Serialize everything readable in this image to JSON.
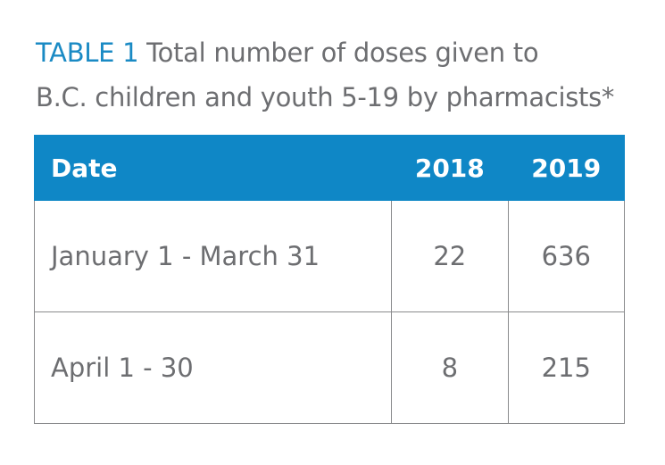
{
  "caption": {
    "label": "TABLE 1",
    "title_line1": " Total number of doses given to",
    "title_line2": "B.C. children and youth 5-19 by pharmacists*"
  },
  "colors": {
    "accent": "#0f87c6",
    "label": "#1a8ac4",
    "text": "#6d6e71",
    "border": "#8a8b8d"
  },
  "chart_data": {
    "type": "table",
    "columns": [
      "Date",
      "2018",
      "2019"
    ],
    "rows": [
      {
        "date": "January 1 - March 31",
        "y2018": "22",
        "y2019": "636"
      },
      {
        "date": "April 1 - 30",
        "y2018": "8",
        "y2019": "215"
      }
    ]
  }
}
